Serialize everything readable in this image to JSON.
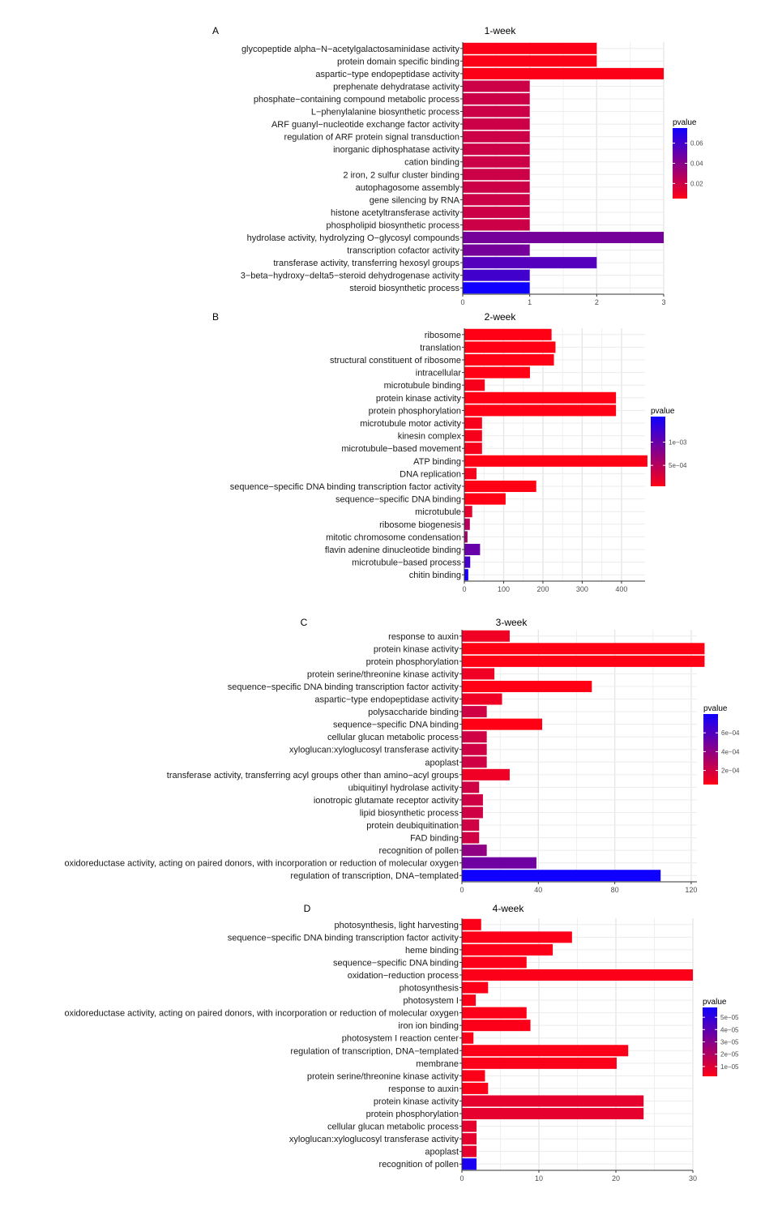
{
  "chart_data": [
    {
      "type": "bar",
      "orientation": "horizontal",
      "panel_label": "A",
      "title": "1-week",
      "xlim": [
        0,
        3
      ],
      "x_ticks": [
        0,
        1,
        2,
        3
      ],
      "x_tick_labels": [
        "0",
        "1",
        "2",
        "3"
      ],
      "legend": {
        "title": "pvalue",
        "placement": "right",
        "range": [
          0.005,
          0.075
        ],
        "ticks": [
          0.02,
          0.04,
          0.06
        ],
        "tick_labels": [
          "0.02",
          "0.04",
          "0.06"
        ]
      },
      "categories": [
        "glycopeptide alpha−N−acetylgalactosaminidase activity",
        "protein domain specific binding",
        "aspartic−type endopeptidase activity",
        "prephenate dehydratase activity",
        "phosphate−containing compound metabolic process",
        "L−phenylalanine biosynthetic process",
        "ARF guanyl−nucleotide exchange factor activity",
        "regulation of ARF protein signal transduction",
        "inorganic diphosphatase activity",
        "cation binding",
        "2 iron, 2 sulfur cluster binding",
        "autophagosome assembly",
        "gene silencing by RNA",
        "histone acetyltransferase activity",
        "phospholipid biosynthetic process",
        "hydrolase activity, hydrolyzing O−glycosyl compounds",
        "transcription cofactor activity",
        "transferase activity, transferring hexosyl groups",
        "3−beta−hydroxy−delta5−steroid dehydrogenase activity",
        "steroid biosynthetic process"
      ],
      "values": [
        2,
        2,
        3,
        1,
        1,
        1,
        1,
        1,
        1,
        1,
        1,
        1,
        1,
        1,
        1,
        3,
        1,
        2,
        1,
        1
      ],
      "pvalues": [
        0.006,
        0.006,
        0.006,
        0.02,
        0.02,
        0.02,
        0.02,
        0.02,
        0.02,
        0.02,
        0.02,
        0.02,
        0.02,
        0.02,
        0.02,
        0.045,
        0.045,
        0.055,
        0.06,
        0.075
      ]
    },
    {
      "type": "bar",
      "orientation": "horizontal",
      "panel_label": "B",
      "title": "2-week",
      "xlim": [
        0,
        460
      ],
      "x_ticks": [
        0,
        100,
        200,
        300,
        400
      ],
      "x_tick_labels": [
        "0",
        "100",
        "200",
        "300",
        "400"
      ],
      "legend": {
        "title": "pvalue",
        "placement": "right",
        "range": [
          5e-05,
          0.00155
        ],
        "ticks": [
          0.0005,
          0.001
        ],
        "tick_labels": [
          "5e−04",
          "1e−03"
        ]
      },
      "categories": [
        "ribosome",
        "translation",
        "structural constituent of ribosome",
        "intracellular",
        "microtubule binding",
        "protein kinase activity",
        "protein phosphorylation",
        "microtubule motor activity",
        "kinesin complex",
        "microtubule−based movement",
        "ATP binding",
        "DNA replication",
        "sequence−specific DNA binding transcription factor activity",
        "sequence−specific DNA binding",
        "microtubule",
        "ribosome biogenesis",
        "mitotic chromosome condensation",
        "flavin adenine dinucleotide binding",
        "microtubule−based process",
        "chitin binding"
      ],
      "values": [
        222,
        232,
        228,
        167,
        52,
        386,
        386,
        45,
        45,
        45,
        466,
        31,
        183,
        105,
        20,
        14,
        8,
        40,
        15,
        10
      ],
      "pvalues": [
        5e-05,
        5e-05,
        5e-05,
        5e-05,
        0.0001,
        5e-05,
        5e-05,
        0.0001,
        0.0001,
        0.0001,
        5e-05,
        0.0001,
        5e-05,
        5e-05,
        0.0002,
        0.0005,
        0.0006,
        0.001,
        0.0012,
        0.0015
      ]
    },
    {
      "type": "bar",
      "orientation": "horizontal",
      "panel_label": "C",
      "title": "3-week",
      "xlim": [
        0,
        123
      ],
      "x_ticks": [
        0,
        40,
        80,
        120
      ],
      "x_tick_labels": [
        "0",
        "40",
        "80",
        "120"
      ],
      "legend": {
        "title": "pvalue",
        "placement": "right",
        "range": [
          5e-05,
          0.0008
        ],
        "ticks": [
          0.0002,
          0.0004,
          0.0006
        ],
        "tick_labels": [
          "2e−04",
          "4e−04",
          "6e−04"
        ]
      },
      "categories": [
        "response to auxin",
        "protein kinase activity",
        "protein phosphorylation",
        "protein serine/threonine kinase activity",
        "sequence−specific DNA binding transcription factor activity",
        "aspartic−type endopeptidase activity",
        "polysaccharide binding",
        "sequence−specific DNA binding",
        "cellular glucan metabolic process",
        "xyloglucan:xyloglucosyl transferase activity",
        "apoplast",
        "transferase activity, transferring acyl groups other than amino−acyl groups",
        "ubiquitinyl hydrolase activity",
        "ionotropic glutamate receptor activity",
        "lipid biosynthetic process",
        "protein deubiquitination",
        "FAD binding",
        "recognition of pollen",
        "oxidoreductase activity, acting on paired donors, with incorporation or reduction of molecular oxygen",
        "regulation of transcription, DNA−templated"
      ],
      "values": [
        25,
        127,
        127,
        17,
        68,
        21,
        13,
        42,
        13,
        13,
        13,
        25,
        9,
        11,
        11,
        9,
        9,
        13,
        39,
        104
      ],
      "pvalues": [
        0.0001,
        5e-05,
        5e-05,
        0.0001,
        5e-05,
        0.0001,
        0.0002,
        5e-05,
        0.0002,
        0.0002,
        0.0002,
        0.0001,
        0.0002,
        0.0002,
        0.0002,
        0.0002,
        0.0002,
        0.0004,
        0.0005,
        0.0008
      ]
    },
    {
      "type": "bar",
      "orientation": "horizontal",
      "panel_label": "D",
      "title": "4-week",
      "xlim": [
        0,
        30
      ],
      "x_ticks": [
        0,
        10,
        20,
        30
      ],
      "x_tick_labels": [
        "0",
        "10",
        "20",
        "30"
      ],
      "legend": {
        "title": "pvalue",
        "placement": "right",
        "range": [
          2e-06,
          5.8e-05
        ],
        "ticks": [
          1e-05,
          2e-05,
          3e-05,
          4e-05,
          5e-05
        ],
        "tick_labels": [
          "1e−05",
          "2e−05",
          "3e−05",
          "4e−05",
          "5e−05"
        ]
      },
      "categories": [
        "photosynthesis, light harvesting",
        "sequence−specific DNA binding transcription factor activity",
        "heme binding",
        "sequence−specific DNA binding",
        "oxidation−reduction process",
        "photosynthesis",
        "photosystem I",
        "oxidoreductase activity, acting on paired donors, with incorporation or reduction of molecular oxygen",
        "iron ion binding",
        "photosystem I reaction center",
        "regulation of transcription, DNA−templated",
        "membrane",
        "protein serine/threonine kinase activity",
        "response to auxin",
        "protein kinase activity",
        "protein phosphorylation",
        "cellular glucan metabolic process",
        "xyloglucan:xyloglucosyl transferase activity",
        "apoplast",
        "recognition of pollen"
      ],
      "values": [
        2.5,
        14.3,
        11.8,
        8.4,
        30,
        3.4,
        1.8,
        8.4,
        8.9,
        1.5,
        21.6,
        20.1,
        3,
        3.4,
        23.6,
        23.6,
        1.9,
        1.9,
        1.9,
        1.9
      ],
      "pvalues": [
        3e-06,
        3e-06,
        3e-06,
        3e-06,
        3e-06,
        3e-06,
        3e-06,
        3e-06,
        3e-06,
        3e-06,
        3e-06,
        3e-06,
        3e-06,
        3e-06,
        8e-06,
        8e-06,
        8e-06,
        8e-06,
        8e-06,
        5.5e-05
      ]
    }
  ]
}
